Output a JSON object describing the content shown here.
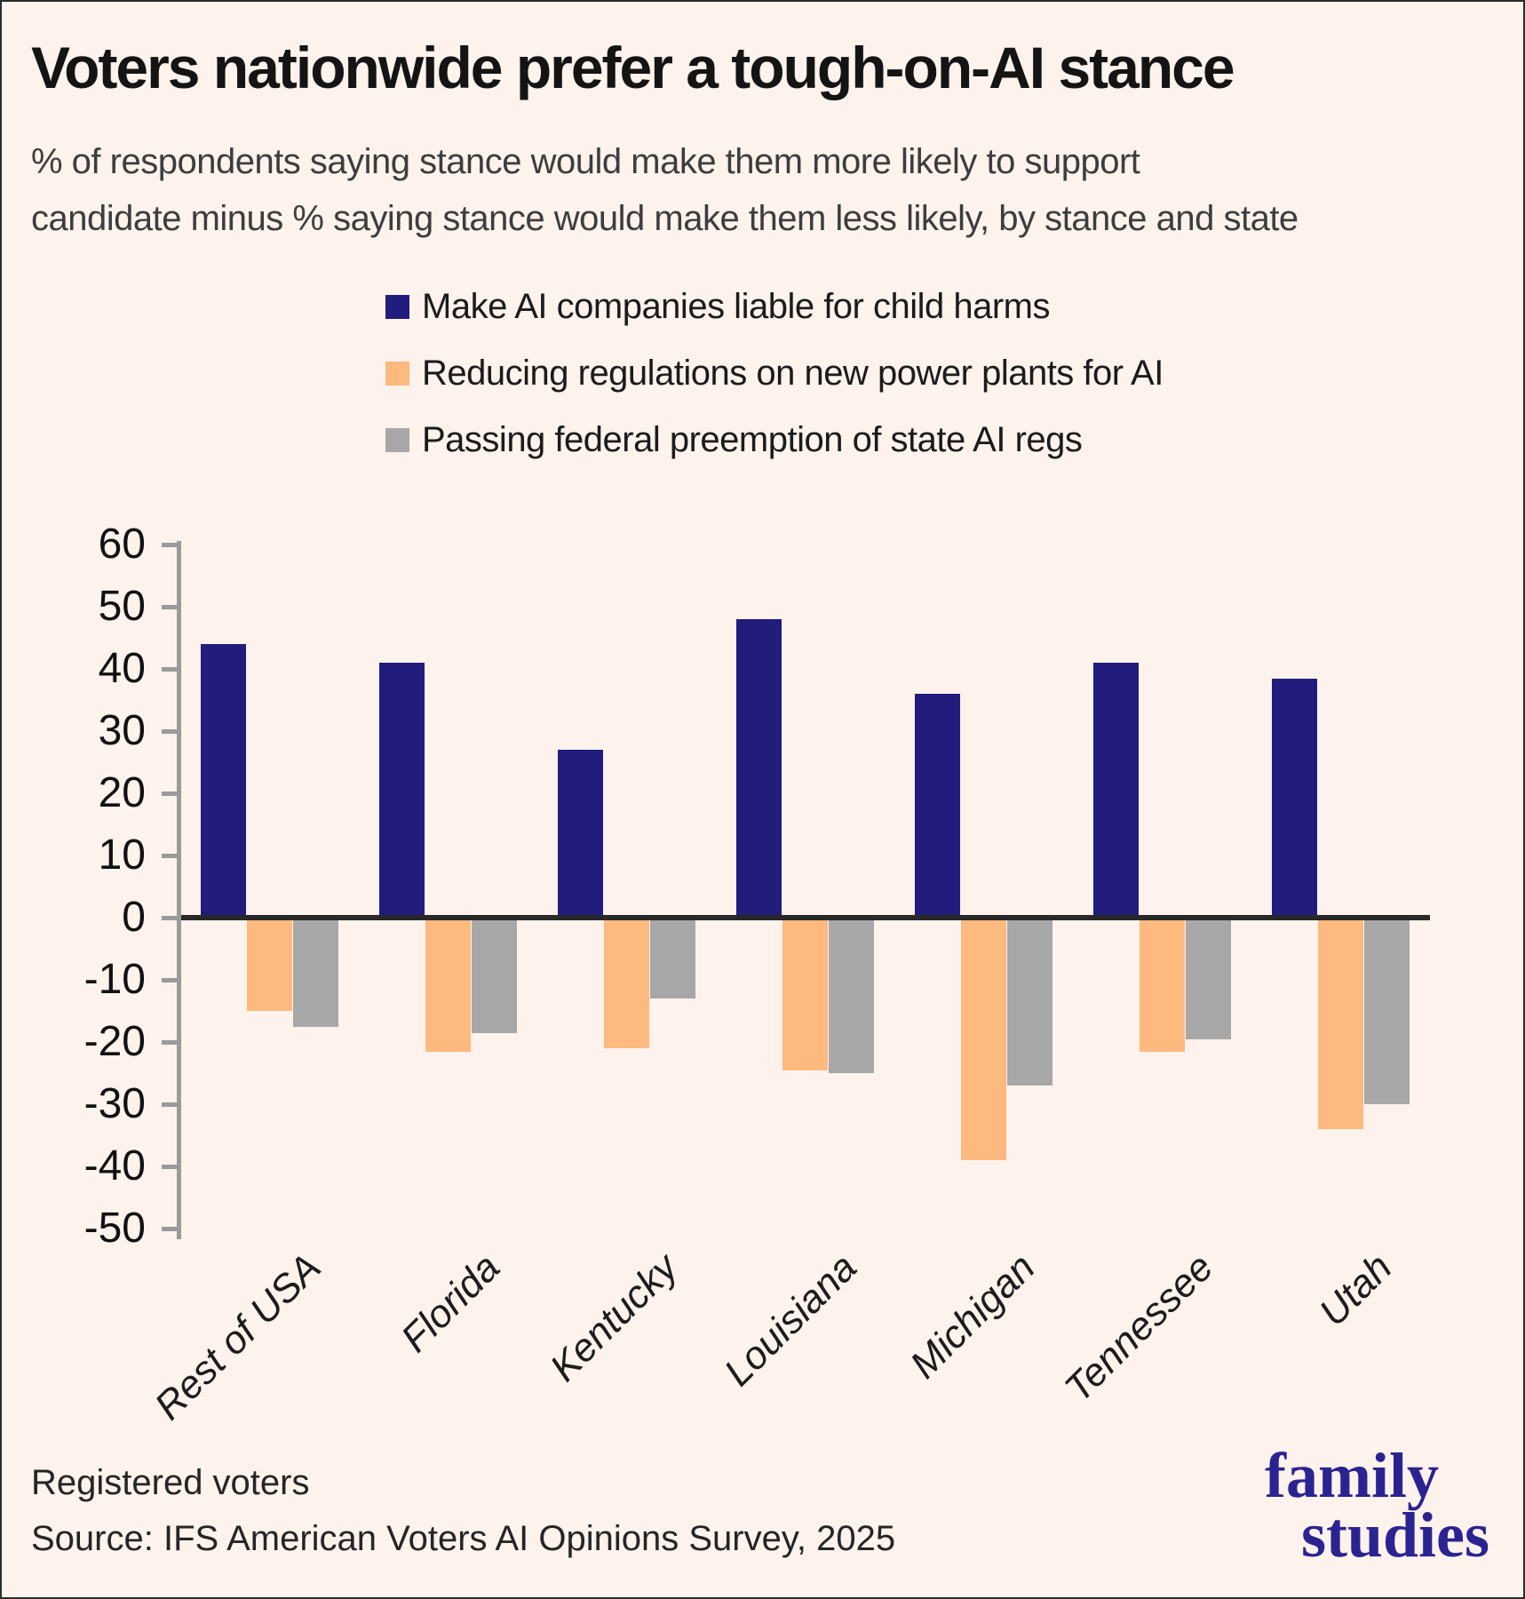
{
  "header": {
    "title": "Voters nationwide prefer a tough-on-AI stance",
    "subtitle": "% of respondents saying stance would make them more likely to support\ncandidate minus % saying stance would make them less likely, by stance and state"
  },
  "legend": {
    "items": [
      {
        "label": "Make AI companies liable for child harms",
        "color": "#221c7d"
      },
      {
        "label": "Reducing regulations on new power plants for AI",
        "color": "#fdb97e"
      },
      {
        "label": "Passing federal preemption of state AI regs",
        "color": "#a7a7a7"
      }
    ]
  },
  "chart_data": {
    "type": "bar",
    "title": "Voters nationwide prefer a tough-on-AI stance",
    "categories": [
      "Rest of USA",
      "Florida",
      "Kentucky",
      "Louisiana",
      "Michigan",
      "Tennessee",
      "Utah"
    ],
    "series": [
      {
        "name": "Make AI companies liable for child harms",
        "color": "#221c7d",
        "values": [
          44,
          41,
          27,
          48,
          36,
          41,
          38.5
        ]
      },
      {
        "name": "Reducing regulations on new power plants for AI",
        "color": "#fdb97e",
        "values": [
          -15,
          -21.5,
          -21,
          -24.5,
          -39,
          -21.5,
          -34
        ]
      },
      {
        "name": "Passing federal preemption of state AI regs",
        "color": "#a7a7a7",
        "values": [
          -17.5,
          -18.5,
          -13,
          -25,
          -27,
          -19.5,
          -30
        ]
      }
    ],
    "xlabel": "",
    "ylabel": "",
    "ylim": [
      -50,
      60
    ],
    "yticks": [
      60,
      50,
      40,
      30,
      20,
      10,
      0,
      -10,
      -20,
      -30,
      -40,
      -50
    ],
    "grid": false,
    "legend_position": "top",
    "zero_baseline": true
  },
  "footer": {
    "note": "Registered voters",
    "source": "Source: IFS American Voters AI Opinions Survey, 2025"
  },
  "logo": {
    "line1": "family",
    "line2": "studies",
    "color": "#2b2391"
  }
}
